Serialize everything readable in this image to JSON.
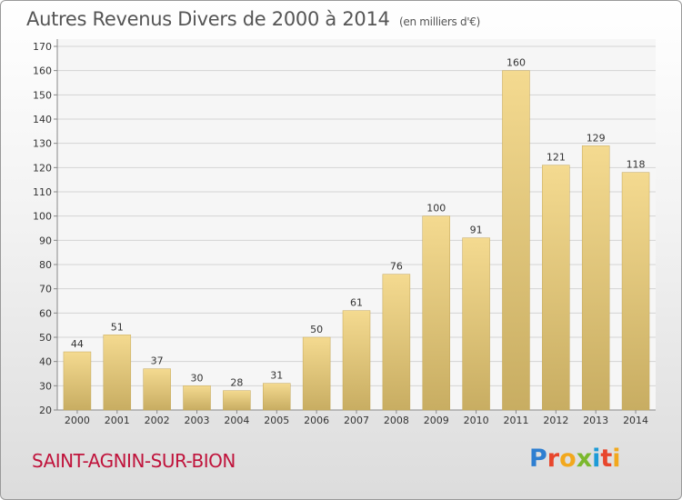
{
  "chart_data": {
    "type": "bar",
    "title": "Autres Revenus Divers de 2000 à 2014",
    "subtitle": "(en milliers d'€)",
    "categories": [
      "2000",
      "2001",
      "2002",
      "2003",
      "2004",
      "2005",
      "2006",
      "2007",
      "2008",
      "2009",
      "2010",
      "2011",
      "2012",
      "2013",
      "2014"
    ],
    "values": [
      44,
      51,
      37,
      30,
      28,
      31,
      50,
      61,
      76,
      100,
      91,
      160,
      121,
      129,
      118
    ],
    "ylim": [
      20,
      170
    ],
    "yticks": [
      20,
      30,
      40,
      50,
      60,
      70,
      80,
      90,
      100,
      110,
      120,
      130,
      140,
      150,
      160,
      170
    ],
    "grid": true,
    "legend": "none",
    "bar_color": "#e8c870"
  },
  "location": "SAINT-AGNIN-SUR-BION",
  "logo": {
    "text": "Proxiti",
    "letter_colors": [
      "#2e7fd1",
      "#e8462c",
      "#f2a81d",
      "#7bb82d",
      "#1d9bd7",
      "#e8462c",
      "#f2a81d"
    ]
  }
}
